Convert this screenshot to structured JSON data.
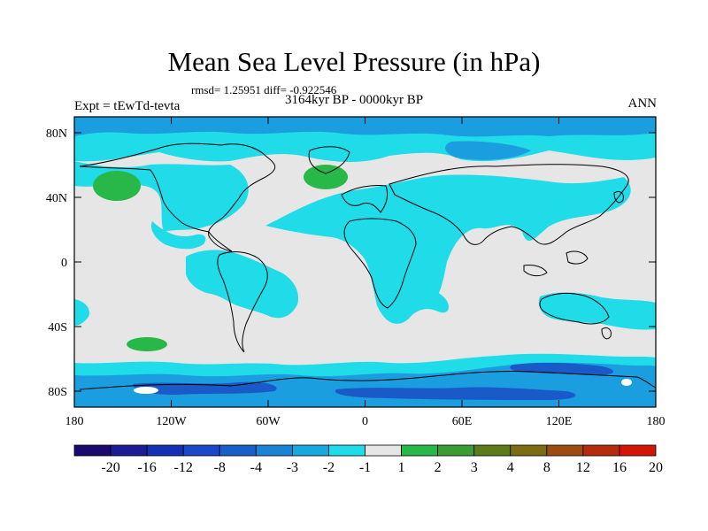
{
  "title": "Mean Sea Level Pressure (in hPa)",
  "stats": "rmsd= 1.25951 diff= -0.922546",
  "period": "3164kyr BP - 0000kyr BP",
  "experiment": "Expt = tEwTd-tevta",
  "season": "ANN",
  "map": {
    "lat_ticks": [
      "80N",
      "40N",
      "0",
      "40S",
      "80S"
    ],
    "lon_ticks": [
      "180",
      "120W",
      "60W",
      "0",
      "60E",
      "120E",
      "180"
    ]
  },
  "colorbar": {
    "labels": [
      "-20",
      "-16",
      "-12",
      "-8",
      "-4",
      "-3",
      "-2",
      "-1",
      "1",
      "2",
      "3",
      "4",
      "8",
      "12",
      "16",
      "20"
    ],
    "colors": [
      "#1a0a6e",
      "#1c1c96",
      "#1630b4",
      "#1a48c8",
      "#1860c8",
      "#1a84d4",
      "#18a8e0",
      "#20dce8",
      "#e6e6e6",
      "#28b848",
      "#3c9c34",
      "#5c7c1c",
      "#7c6c14",
      "#9c4c10",
      "#b42c0c",
      "#d41408"
    ]
  },
  "legend_colors": {
    "background": "#e6e6e6",
    "light_blue": "#20dce8",
    "medium_blue": "#1a9ee0",
    "dark_blue": "#1a5ac8",
    "green": "#28b848"
  }
}
